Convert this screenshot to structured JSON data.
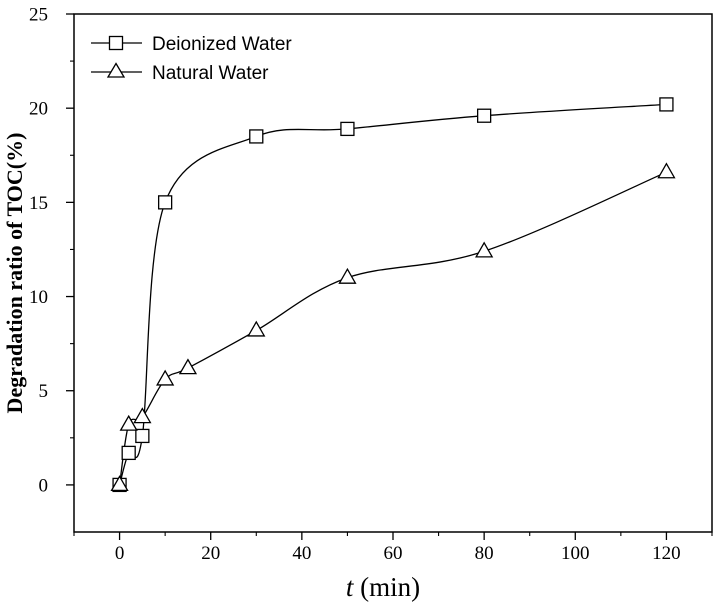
{
  "chart_data": {
    "type": "line",
    "xlabel": {
      "var": "t",
      "unit": " (min)"
    },
    "ylabel": "Degradation ratio of TOC(%)",
    "xlim": [
      -10,
      130
    ],
    "ylim": [
      -2.5,
      25
    ],
    "xticks": [
      0,
      20,
      40,
      60,
      80,
      100,
      120
    ],
    "yticks": [
      0,
      5,
      10,
      15,
      20,
      25
    ],
    "grid": false,
    "legend_position": "top-left",
    "series": [
      {
        "name": "Deionized Water",
        "marker": "square",
        "x": [
          0,
          2,
          5,
          10,
          30,
          50,
          80,
          120
        ],
        "y": [
          0,
          1.7,
          2.6,
          15.0,
          18.5,
          18.9,
          19.6,
          20.2
        ]
      },
      {
        "name": "Natural Water",
        "marker": "triangle",
        "x": [
          0,
          2,
          5,
          10,
          15,
          30,
          50,
          80,
          120
        ],
        "y": [
          0,
          3.2,
          3.6,
          5.6,
          6.2,
          8.2,
          11.0,
          12.4,
          16.6
        ]
      }
    ]
  }
}
